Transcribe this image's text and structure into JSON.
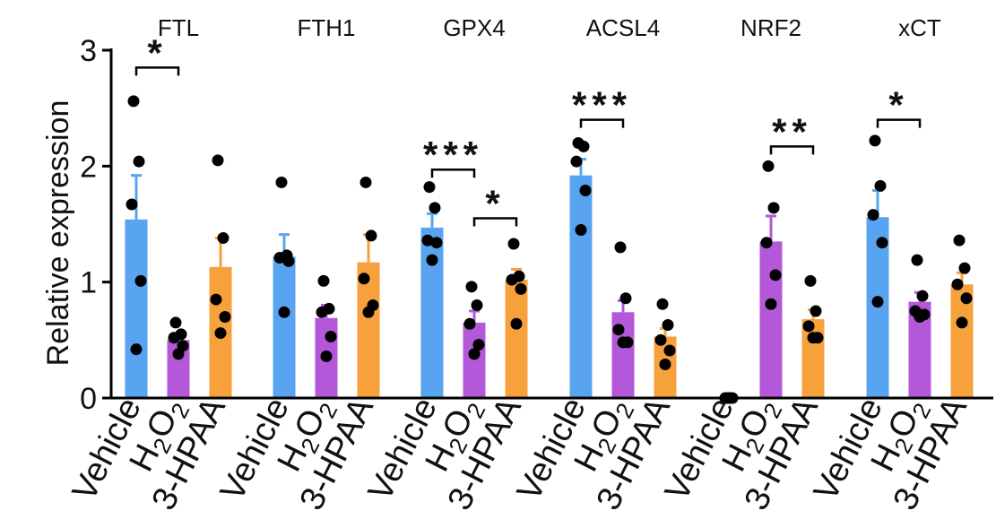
{
  "chart_data": {
    "type": "bar",
    "title": "",
    "xlabel": "",
    "ylabel": "Relative expression",
    "ylim": [
      0,
      3
    ],
    "yticks": [
      "0",
      "1",
      "2",
      "3"
    ],
    "conditions": [
      {
        "name": "Vehicle",
        "display": "Vehicle",
        "color": "#58a4f0"
      },
      {
        "name": "H2O2",
        "display": "H2O2",
        "color": "#b457d8"
      },
      {
        "name": "3-HPAA",
        "display": "3-HPAA",
        "color": "#f7a13c"
      }
    ],
    "groups": [
      {
        "gene": "FTL",
        "bars": [
          {
            "condition": "Vehicle",
            "mean": 1.54,
            "sem": 0.38,
            "points": [
              2.56,
              2.04,
              1.67,
              1.01,
              0.42
            ]
          },
          {
            "condition": "H2O2",
            "mean": 0.5,
            "sem": 0.05,
            "points": [
              0.65,
              0.55,
              0.52,
              0.45,
              0.38
            ]
          },
          {
            "condition": "3-HPAA",
            "mean": 1.13,
            "sem": 0.25,
            "points": [
              2.05,
              1.38,
              0.85,
              0.7,
              0.56
            ]
          }
        ]
      },
      {
        "gene": "FTH1",
        "bars": [
          {
            "condition": "Vehicle",
            "mean": 1.22,
            "sem": 0.19,
            "points": [
              1.86,
              1.23,
              1.21,
              1.18,
              0.74
            ]
          },
          {
            "condition": "H2O2",
            "mean": 0.69,
            "sem": 0.11,
            "points": [
              1.01,
              0.77,
              0.74,
              0.53,
              0.36
            ]
          },
          {
            "condition": "3-HPAA",
            "mean": 1.17,
            "sem": 0.24,
            "points": [
              1.86,
              1.4,
              1.03,
              0.8,
              0.74
            ]
          }
        ]
      },
      {
        "gene": "GPX4",
        "bars": [
          {
            "condition": "Vehicle",
            "mean": 1.47,
            "sem": 0.12,
            "points": [
              1.82,
              1.64,
              1.36,
              1.34,
              1.19
            ]
          },
          {
            "condition": "H2O2",
            "mean": 0.65,
            "sem": 0.1,
            "points": [
              0.96,
              0.8,
              0.64,
              0.46,
              0.38
            ]
          },
          {
            "condition": "3-HPAA",
            "mean": 1.02,
            "sem": 0.09,
            "points": [
              1.33,
              1.05,
              1.02,
              0.94,
              0.64
            ]
          }
        ]
      },
      {
        "gene": "ACSL4",
        "bars": [
          {
            "condition": "Vehicle",
            "mean": 1.92,
            "sem": 0.14,
            "points": [
              2.2,
              2.17,
              2.04,
              1.79,
              1.45
            ]
          },
          {
            "condition": "H2O2",
            "mean": 0.74,
            "sem": 0.1,
            "points": [
              1.3,
              0.86,
              0.59,
              0.48,
              0.48
            ]
          },
          {
            "condition": "3-HPAA",
            "mean": 0.53,
            "sem": 0.07,
            "points": [
              0.81,
              0.63,
              0.5,
              0.41,
              0.29
            ]
          }
        ]
      },
      {
        "gene": "NRF2",
        "bars": [
          {
            "condition": "Vehicle",
            "mean": 0.0,
            "sem": 0.0,
            "points": [
              0.0,
              0.0,
              0.0,
              0.0,
              0.0
            ]
          },
          {
            "condition": "H2O2",
            "mean": 1.35,
            "sem": 0.22,
            "points": [
              2.0,
              1.64,
              1.34,
              1.06,
              0.81
            ]
          },
          {
            "condition": "3-HPAA",
            "mean": 0.68,
            "sem": 0.08,
            "points": [
              1.01,
              0.75,
              0.62,
              0.52,
              0.52
            ]
          }
        ]
      },
      {
        "gene": "xCT",
        "bars": [
          {
            "condition": "Vehicle",
            "mean": 1.56,
            "sem": 0.23,
            "points": [
              2.22,
              1.83,
              1.58,
              1.34,
              0.83
            ]
          },
          {
            "condition": "H2O2",
            "mean": 0.83,
            "sem": 0.08,
            "points": [
              1.19,
              0.88,
              0.75,
              0.72,
              0.7
            ]
          },
          {
            "condition": "3-HPAA",
            "mean": 0.98,
            "sem": 0.1,
            "points": [
              1.36,
              1.12,
              0.98,
              0.86,
              0.65
            ]
          }
        ]
      }
    ],
    "significance": [
      {
        "group": 0,
        "from": 0,
        "to": 1,
        "label": "*",
        "y": 2.85
      },
      {
        "group": 2,
        "from": 0,
        "to": 1,
        "label": "***",
        "y": 1.97
      },
      {
        "group": 2,
        "from": 1,
        "to": 2,
        "label": "*",
        "y": 1.55
      },
      {
        "group": 3,
        "from": 0,
        "to": 1,
        "label": "***",
        "y": 2.4
      },
      {
        "group": 4,
        "from": 1,
        "to": 2,
        "label": "**",
        "y": 2.17
      },
      {
        "group": 5,
        "from": 0,
        "to": 1,
        "label": "*",
        "y": 2.4
      }
    ]
  }
}
